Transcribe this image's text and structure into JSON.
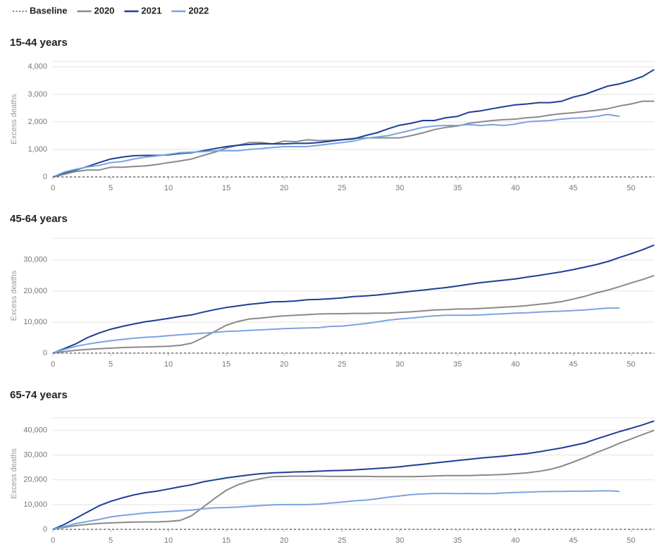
{
  "legend": [
    {
      "name": "Baseline",
      "color": "#555555",
      "dash": true
    },
    {
      "name": "2020",
      "color": "#8a8a8a"
    },
    {
      "name": "2021",
      "color": "#1b3f96"
    },
    {
      "name": "2022",
      "color": "#7aa4e0"
    }
  ],
  "chart_data": [
    {
      "type": "line",
      "title": "15-44 years",
      "ylabel": "Excess deaths",
      "baseline": 0,
      "xlim": [
        0,
        52
      ],
      "xticks": [
        0,
        5,
        10,
        15,
        20,
        25,
        30,
        35,
        40,
        45,
        50
      ],
      "ylim": [
        0,
        4200
      ],
      "yticks": [
        0,
        {
          "value": 1000,
          "label": "1,000"
        },
        {
          "value": 2000,
          "label": "2,000"
        },
        {
          "value": 3000,
          "label": "3,000"
        },
        {
          "value": 4000,
          "label": "4,000"
        }
      ],
      "grid": true,
      "x": [
        0,
        1,
        2,
        3,
        4,
        5,
        6,
        7,
        8,
        9,
        10,
        11,
        12,
        13,
        14,
        15,
        16,
        17,
        18,
        19,
        20,
        21,
        22,
        23,
        24,
        25,
        26,
        27,
        28,
        29,
        30,
        31,
        32,
        33,
        34,
        35,
        36,
        37,
        38,
        39,
        40,
        41,
        42,
        43,
        44,
        45,
        46,
        47,
        48,
        49,
        50,
        51,
        52
      ],
      "series": [
        {
          "values": [
            0,
            100,
            200,
            250,
            250,
            350,
            350,
            380,
            400,
            450,
            520,
            580,
            650,
            780,
            900,
            1050,
            1150,
            1250,
            1250,
            1200,
            1300,
            1280,
            1350,
            1320,
            1330,
            1350,
            1400,
            1420,
            1420,
            1420,
            1420,
            1500,
            1600,
            1720,
            1800,
            1850,
            1950,
            2000,
            2050,
            2080,
            2100,
            2150,
            2180,
            2250,
            2300,
            2330,
            2380,
            2420,
            2480,
            2580,
            2650,
            2750,
            2750
          ]
        },
        {
          "values": [
            0,
            150,
            250,
            380,
            520,
            650,
            720,
            770,
            780,
            780,
            800,
            850,
            880,
            950,
            1030,
            1100,
            1150,
            1180,
            1200,
            1200,
            1200,
            1220,
            1220,
            1250,
            1300,
            1350,
            1380,
            1500,
            1600,
            1750,
            1880,
            1950,
            2050,
            2050,
            2150,
            2200,
            2350,
            2400,
            2480,
            2550,
            2620,
            2650,
            2700,
            2700,
            2750,
            2900,
            3000,
            3150,
            3300,
            3380,
            3500,
            3650,
            3900
          ]
        },
        {
          "values": [
            0,
            180,
            280,
            360,
            420,
            520,
            560,
            650,
            720,
            760,
            820,
            880,
            900,
            920,
            950,
            950,
            950,
            1000,
            1030,
            1070,
            1100,
            1100,
            1100,
            1150,
            1200,
            1250,
            1300,
            1400,
            1450,
            1500,
            1600,
            1700,
            1800,
            1850,
            1870,
            1870,
            1900,
            1870,
            1900,
            1870,
            1920,
            2000,
            2030,
            2050,
            2100,
            2130,
            2150,
            2200,
            2270,
            2200,
            null,
            null,
            null
          ]
        }
      ]
    },
    {
      "type": "line",
      "title": "45-64 years",
      "ylabel": "Excess deaths",
      "baseline": 0,
      "xlim": [
        0,
        52
      ],
      "xticks": [
        0,
        5,
        10,
        15,
        20,
        25,
        30,
        35,
        40,
        45,
        50
      ],
      "ylim": [
        0,
        37000
      ],
      "yticks": [
        0,
        {
          "value": 10000,
          "label": "10,000"
        },
        {
          "value": 20000,
          "label": "20,000"
        },
        {
          "value": 30000,
          "label": "30,000"
        }
      ],
      "grid": true,
      "x": [
        0,
        1,
        2,
        3,
        4,
        5,
        6,
        7,
        8,
        9,
        10,
        11,
        12,
        13,
        14,
        15,
        16,
        17,
        18,
        19,
        20,
        21,
        22,
        23,
        24,
        25,
        26,
        27,
        28,
        29,
        30,
        31,
        32,
        33,
        34,
        35,
        36,
        37,
        38,
        39,
        40,
        41,
        42,
        43,
        44,
        45,
        46,
        47,
        48,
        49,
        50,
        51,
        52
      ],
      "series": [
        {
          "values": [
            0,
            500,
            900,
            1200,
            1400,
            1600,
            1800,
            1900,
            2000,
            2100,
            2200,
            2500,
            3200,
            5000,
            7000,
            9000,
            10200,
            11000,
            11300,
            11700,
            12000,
            12200,
            12400,
            12600,
            12700,
            12700,
            12800,
            12800,
            12900,
            12900,
            13100,
            13300,
            13600,
            13900,
            14000,
            14200,
            14200,
            14400,
            14600,
            14800,
            15000,
            15300,
            15700,
            16100,
            16600,
            17400,
            18300,
            19400,
            20300,
            21400,
            22600,
            23700,
            25000
          ]
        },
        {
          "values": [
            0,
            1500,
            3000,
            5000,
            6500,
            7700,
            8600,
            9400,
            10100,
            10600,
            11200,
            11800,
            12300,
            13200,
            14000,
            14700,
            15200,
            15700,
            16100,
            16500,
            16600,
            16800,
            17200,
            17300,
            17500,
            17800,
            18200,
            18400,
            18700,
            19100,
            19500,
            19900,
            20300,
            20700,
            21100,
            21600,
            22200,
            22700,
            23100,
            23500,
            23900,
            24500,
            25000,
            25600,
            26200,
            26900,
            27700,
            28500,
            29500,
            30800,
            32000,
            33300,
            34800
          ]
        },
        {
          "values": [
            0,
            1200,
            2200,
            2900,
            3500,
            4000,
            4400,
            4800,
            5100,
            5300,
            5600,
            5900,
            6200,
            6400,
            6700,
            7000,
            7100,
            7300,
            7500,
            7700,
            7900,
            8000,
            8100,
            8200,
            8600,
            8700,
            9100,
            9500,
            10000,
            10600,
            11000,
            11300,
            11700,
            12000,
            12200,
            12200,
            12200,
            12300,
            12500,
            12700,
            12900,
            13000,
            13200,
            13400,
            13500,
            13700,
            13900,
            14200,
            14500,
            14500,
            null,
            null,
            null
          ]
        }
      ]
    },
    {
      "type": "line",
      "title": "65-74 years",
      "ylabel": "Excess deaths",
      "baseline": 0,
      "xlim": [
        0,
        52
      ],
      "xticks": [
        0,
        5,
        10,
        15,
        20,
        25,
        30,
        35,
        40,
        45,
        50
      ],
      "ylim": [
        0,
        45000
      ],
      "yticks": [
        0,
        {
          "value": 10000,
          "label": "10,000"
        },
        {
          "value": 20000,
          "label": "20,000"
        },
        {
          "value": 30000,
          "label": "30,000"
        },
        {
          "value": 40000,
          "label": "40,000"
        }
      ],
      "grid": true,
      "x": [
        0,
        1,
        2,
        3,
        4,
        5,
        6,
        7,
        8,
        9,
        10,
        11,
        12,
        13,
        14,
        15,
        16,
        17,
        18,
        19,
        20,
        21,
        22,
        23,
        24,
        25,
        26,
        27,
        28,
        29,
        30,
        31,
        32,
        33,
        34,
        35,
        36,
        37,
        38,
        39,
        40,
        41,
        42,
        43,
        44,
        45,
        46,
        47,
        48,
        49,
        50,
        51,
        52
      ],
      "series": [
        {
          "values": [
            0,
            800,
            1500,
            2000,
            2400,
            2600,
            2800,
            2900,
            3000,
            3000,
            3200,
            3600,
            5500,
            9000,
            12500,
            15800,
            18000,
            19500,
            20500,
            21300,
            21400,
            21500,
            21500,
            21500,
            21400,
            21400,
            21400,
            21400,
            21300,
            21300,
            21300,
            21300,
            21400,
            21600,
            21700,
            21700,
            21700,
            21900,
            22000,
            22200,
            22500,
            22800,
            23400,
            24200,
            25500,
            27200,
            29000,
            31000,
            32800,
            34800,
            36500,
            38300,
            40000
          ]
        },
        {
          "values": [
            0,
            2000,
            4500,
            7000,
            9500,
            11300,
            12700,
            13900,
            14800,
            15400,
            16300,
            17200,
            18000,
            19200,
            20000,
            20800,
            21400,
            22000,
            22500,
            22800,
            23000,
            23200,
            23300,
            23500,
            23700,
            23800,
            24000,
            24300,
            24600,
            24900,
            25300,
            25800,
            26300,
            26800,
            27300,
            27800,
            28300,
            28800,
            29200,
            29600,
            30100,
            30600,
            31300,
            32100,
            32900,
            33900,
            34900,
            36500,
            38000,
            39500,
            40800,
            42200,
            43800
          ]
        },
        {
          "values": [
            0,
            1200,
            2300,
            3200,
            4000,
            5000,
            5600,
            6100,
            6600,
            6900,
            7200,
            7500,
            7800,
            8300,
            8700,
            8800,
            9000,
            9300,
            9600,
            9900,
            10000,
            10000,
            10000,
            10200,
            10600,
            11000,
            11500,
            11800,
            12300,
            13000,
            13500,
            14000,
            14300,
            14500,
            14500,
            14400,
            14500,
            14400,
            14400,
            14700,
            14900,
            15000,
            15200,
            15300,
            15300,
            15400,
            15400,
            15500,
            15600,
            15300,
            null,
            null,
            null
          ]
        }
      ]
    }
  ]
}
